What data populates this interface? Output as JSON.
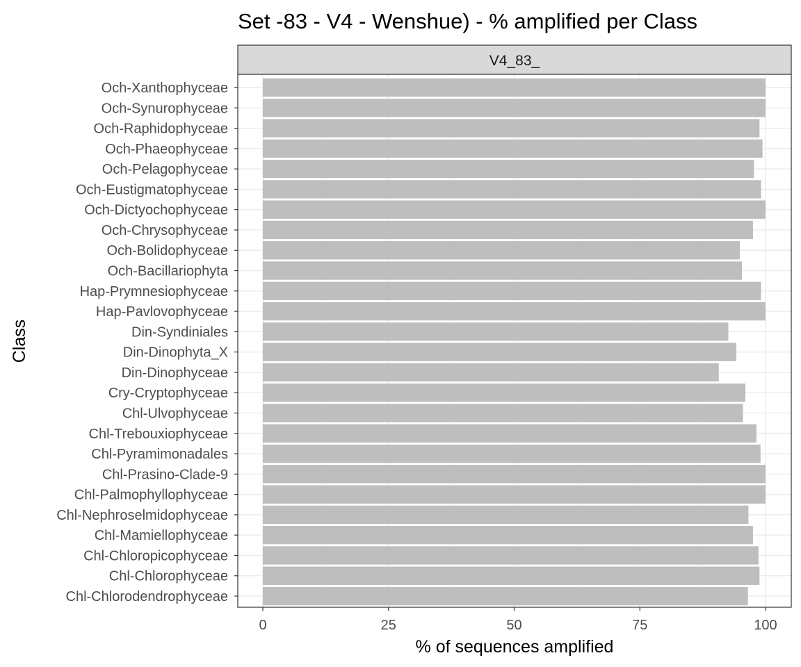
{
  "chart_data": {
    "type": "bar",
    "orientation": "horizontal",
    "title": "Set -83 - V4 - Wenshue) - % amplified per Class",
    "facet_label": "V4_83_",
    "xlabel": "% of sequences amplified",
    "ylabel": "Class",
    "xlim": [
      0,
      100
    ],
    "x_ticks": [
      "0",
      "25",
      "50",
      "75",
      "100"
    ],
    "grid": true,
    "legend": "none",
    "bar_color": "#bebebe",
    "categories": [
      "Och-Xanthophyceae",
      "Och-Synurophyceae",
      "Och-Raphidophyceae",
      "Och-Phaeophyceae",
      "Och-Pelagophyceae",
      "Och-Eustigmatophyceae",
      "Och-Dictyochophyceae",
      "Och-Chrysophyceae",
      "Och-Bolidophyceae",
      "Och-Bacillariophyta",
      "Hap-Prymnesiophyceae",
      "Hap-Pavlovophyceae",
      "Din-Syndiniales",
      "Din-Dinophyta_X",
      "Din-Dinophyceae",
      "Cry-Cryptophyceae",
      "Chl-Ulvophyceae",
      "Chl-Trebouxiophyceae",
      "Chl-Pyramimonadales",
      "Chl-Prasino-Clade-9",
      "Chl-Palmophyllophyceae",
      "Chl-Nephroselmidophyceae",
      "Chl-Mamiellophyceae",
      "Chl-Chloropicophyceae",
      "Chl-Chlorophyceae",
      "Chl-Chlorodendrophyceae"
    ],
    "values": [
      100,
      100,
      98.8,
      99.4,
      97.7,
      99.1,
      100,
      97.5,
      94.9,
      95.3,
      99.1,
      100,
      92.6,
      94.2,
      90.7,
      96.0,
      95.5,
      98.2,
      99.0,
      100,
      100,
      96.6,
      97.5,
      98.6,
      98.8,
      96.5
    ]
  }
}
